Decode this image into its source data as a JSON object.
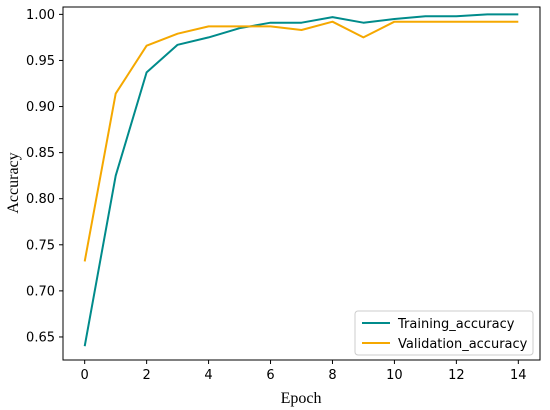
{
  "chart_data": {
    "type": "line",
    "xlabel": "Epoch",
    "ylabel": "Accuracy",
    "xlim": [
      -0.7,
      14.7
    ],
    "ylim": [
      0.625,
      1.008
    ],
    "xticks": [
      0,
      2,
      4,
      6,
      8,
      10,
      12,
      14
    ],
    "yticks": [
      0.65,
      0.7,
      0.75,
      0.8,
      0.85,
      0.9,
      0.95,
      1.0
    ],
    "ytick_labels": [
      "0.65",
      "0.70",
      "0.75",
      "0.80",
      "0.85",
      "0.90",
      "0.95",
      "1.00"
    ],
    "grid": false,
    "legend_position": "lower-right",
    "x": [
      0,
      1,
      2,
      3,
      4,
      5,
      6,
      7,
      8,
      9,
      10,
      11,
      12,
      13,
      14
    ],
    "series": [
      {
        "name": "Training_accuracy",
        "color": "#008b8b",
        "values": [
          0.64,
          0.825,
          0.937,
          0.967,
          0.975,
          0.985,
          0.991,
          0.991,
          0.997,
          0.991,
          0.995,
          0.998,
          0.998,
          1.0,
          1.0
        ]
      },
      {
        "name": "Validation_accuracy",
        "color": "#f5a800",
        "values": [
          0.732,
          0.914,
          0.966,
          0.979,
          0.987,
          0.987,
          0.987,
          0.983,
          0.992,
          0.975,
          0.992,
          0.992,
          0.992,
          0.992,
          0.992
        ]
      }
    ]
  }
}
